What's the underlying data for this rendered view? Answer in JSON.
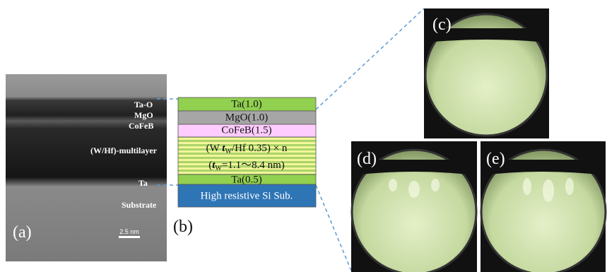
{
  "panel_a": {
    "label": "(a)",
    "layers": [
      "Ta-O",
      "MgO",
      "CoFeB",
      "(W/Hf)-multilayer",
      "Ta",
      "Substrate"
    ],
    "scale_bar": "2.5 nm"
  },
  "panel_b": {
    "label": "(b)",
    "layers": [
      "Ta(1.0)",
      "MgO(1.0)",
      "CoFeB(1.5)"
    ],
    "multilayer": {
      "line1": {
        "prefix": "(W ",
        "symbol": "t",
        "subscript": "W",
        "suffix": "/Hf 0.35) × n"
      },
      "line2": {
        "prefix": "(",
        "symbol": "t",
        "subscript": "W",
        "suffix": "=1.1～8.4 nm)"
      }
    },
    "bottom_layers": [
      "Ta(0.5)",
      "High resistive Si Sub."
    ]
  },
  "panels_rheed": [
    "(c)",
    "(d)",
    "(e)"
  ]
}
